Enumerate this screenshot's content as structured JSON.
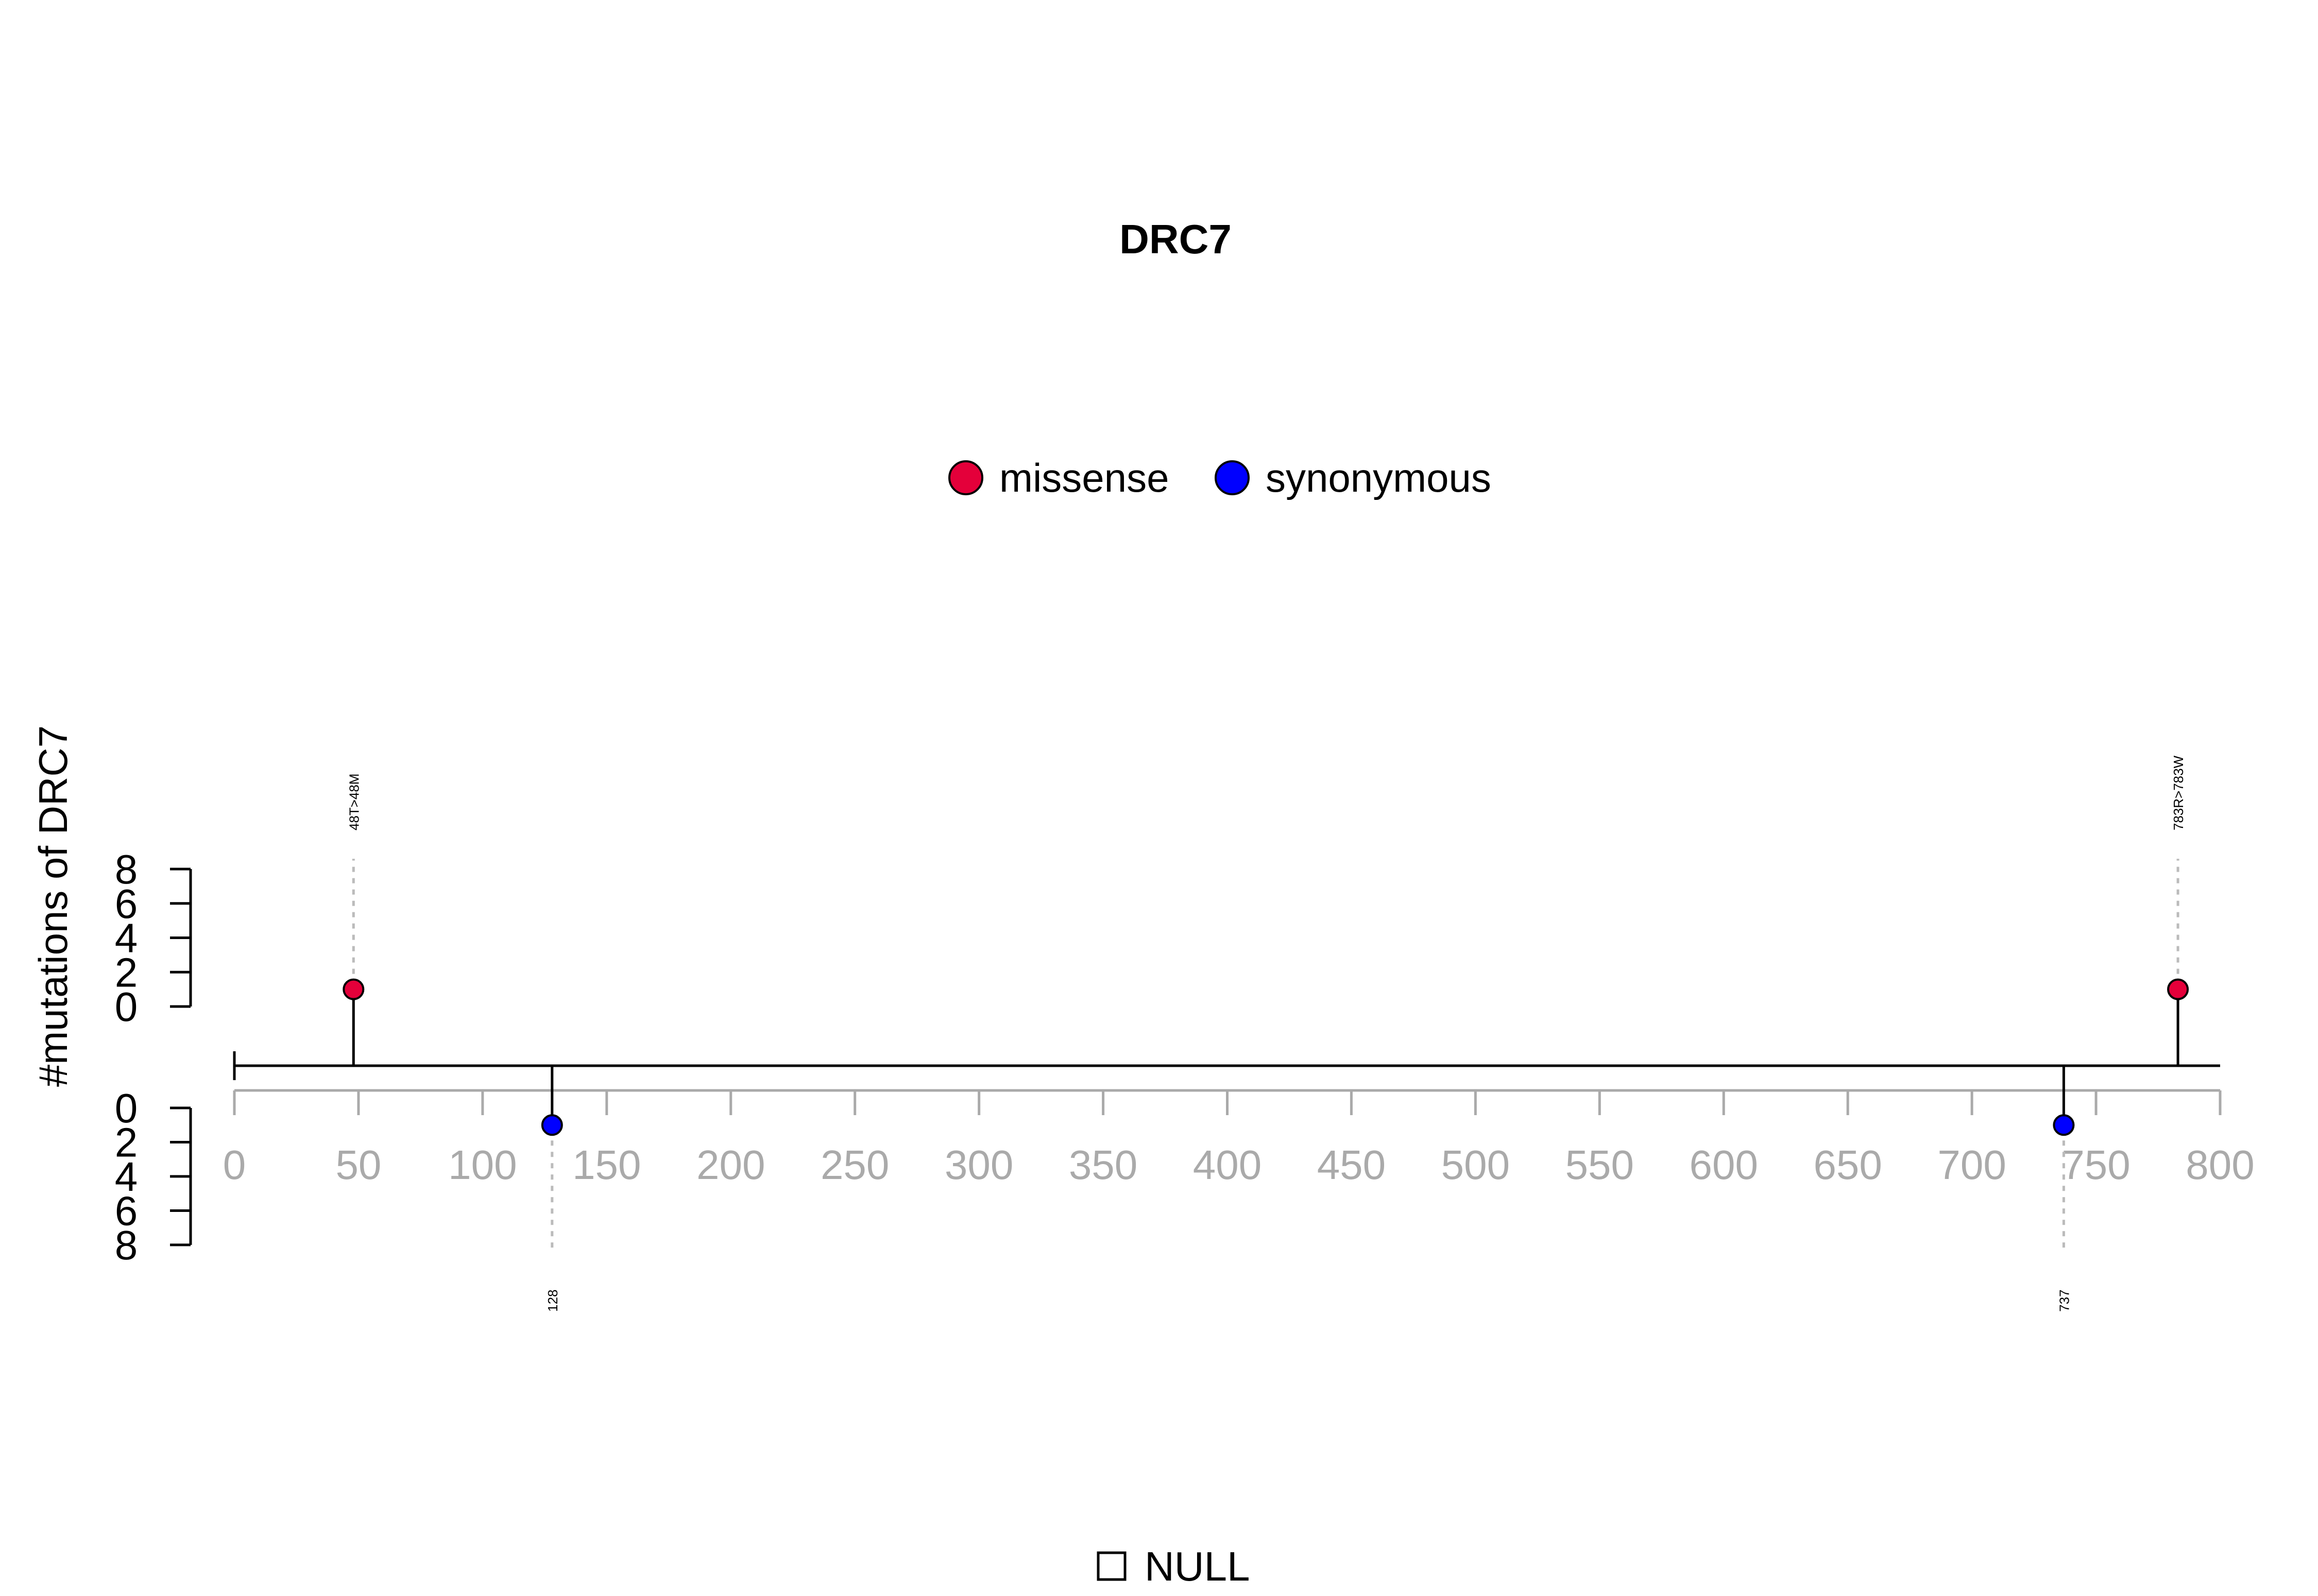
{
  "chart_data": {
    "type": "lollipop",
    "title": "DRC7",
    "ylabel": "#mutations of DRC7",
    "xlim": [
      0,
      800
    ],
    "x_ticks": [
      0,
      50,
      100,
      150,
      200,
      250,
      300,
      350,
      400,
      450,
      500,
      550,
      600,
      650,
      700,
      750,
      800
    ],
    "y_ticks_upper": [
      0,
      2,
      4,
      6,
      8
    ],
    "y_ticks_lower": [
      0,
      2,
      4,
      6,
      8
    ],
    "ylim": [
      0,
      8
    ],
    "legend": {
      "placement": "top-center",
      "items": [
        {
          "label": "missense",
          "color": "#E4003A"
        },
        {
          "label": "synonymous",
          "color": "#0000FF"
        }
      ]
    },
    "mutations": [
      {
        "position": 48,
        "count": 1,
        "type": "missense",
        "side": "upper",
        "label": "48T>48M"
      },
      {
        "position": 128,
        "count": 1,
        "type": "synonymous",
        "side": "lower",
        "label": "128"
      },
      {
        "position": 737,
        "count": 1,
        "type": "synonymous",
        "side": "lower",
        "label": "737"
      },
      {
        "position": 783,
        "count": 1,
        "type": "missense",
        "side": "upper",
        "label": "783R>783W"
      }
    ],
    "domain_legend": {
      "label": "NULL"
    }
  }
}
